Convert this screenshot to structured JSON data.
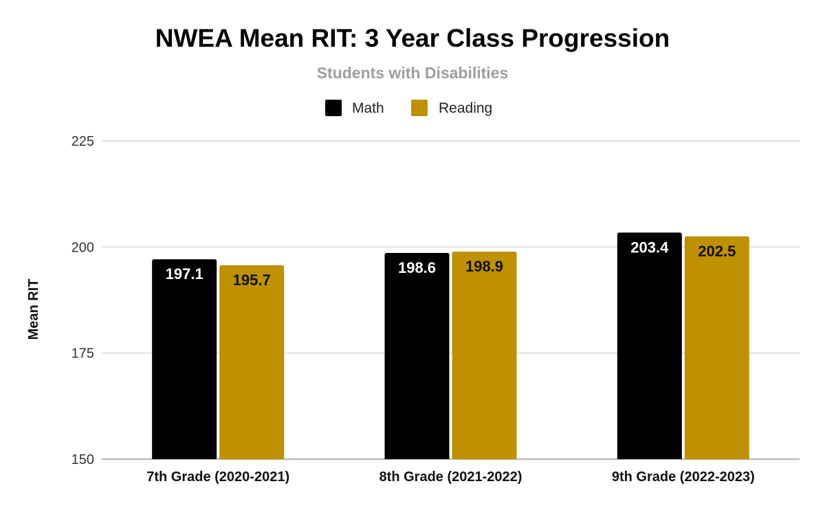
{
  "chart_data": {
    "type": "bar",
    "title": "NWEA Mean RIT: 3 Year Class Progression",
    "subtitle": "Students with Disabilities",
    "xlabel": "",
    "ylabel": "Mean RIT",
    "ylim": [
      150,
      225
    ],
    "yticks": [
      150,
      175,
      200,
      225
    ],
    "grid": true,
    "legend_position": "top",
    "categories": [
      "7th Grade (2020-2021)",
      "8th Grade (2021-2022)",
      "9th Grade (2022-2023)"
    ],
    "series": [
      {
        "name": "Math",
        "color": "#000000",
        "label_color": "#ffffff",
        "values": [
          197.1,
          198.6,
          203.4
        ]
      },
      {
        "name": "Reading",
        "color": "#bf9000",
        "label_color": "#111111",
        "values": [
          195.7,
          198.9,
          202.5
        ]
      }
    ]
  }
}
